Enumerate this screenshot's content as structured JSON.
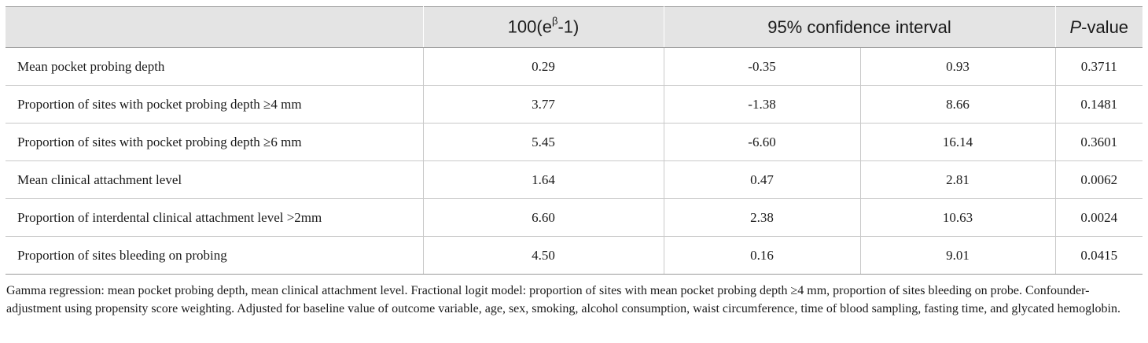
{
  "table": {
    "headers": {
      "label": "",
      "estimate_base": "100(e",
      "estimate_sup": "β",
      "estimate_tail": "-1)",
      "ci": "95% confidence interval",
      "p_italic": "P",
      "p_tail": "-value"
    },
    "rows": [
      {
        "label": "Mean pocket probing depth",
        "estimate": "0.29",
        "ci_low": "-0.35",
        "ci_high": "0.93",
        "p": "0.3711"
      },
      {
        "label": "Proportion of sites with pocket probing depth ≥4 mm",
        "estimate": "3.77",
        "ci_low": "-1.38",
        "ci_high": "8.66",
        "p": "0.1481"
      },
      {
        "label": "Proportion of sites with pocket probing depth ≥6 mm",
        "estimate": "5.45",
        "ci_low": "-6.60",
        "ci_high": "16.14",
        "p": "0.3601"
      },
      {
        "label": "Mean clinical attachment level",
        "estimate": "1.64",
        "ci_low": "0.47",
        "ci_high": "2.81",
        "p": "0.0062"
      },
      {
        "label": "Proportion of interdental clinical attachment level >2mm",
        "estimate": "6.60",
        "ci_low": "2.38",
        "ci_high": "10.63",
        "p": "0.0024"
      },
      {
        "label": "Proportion of sites bleeding on probing",
        "estimate": "4.50",
        "ci_low": "0.16",
        "ci_high": "9.01",
        "p": "0.0415"
      }
    ],
    "footnote": "Gamma regression: mean pocket probing depth, mean clinical attachment level. Fractional logit model: proportion of sites with mean pocket probing depth ≥4 mm, proportion of sites bleeding on probe. Confounder-adjustment using propensity score weighting. Adjusted for baseline value of outcome variable, age, sex, smoking, alcohol consumption, waist circumference, time of blood sampling, fasting time, and glycated hemoglobin."
  }
}
